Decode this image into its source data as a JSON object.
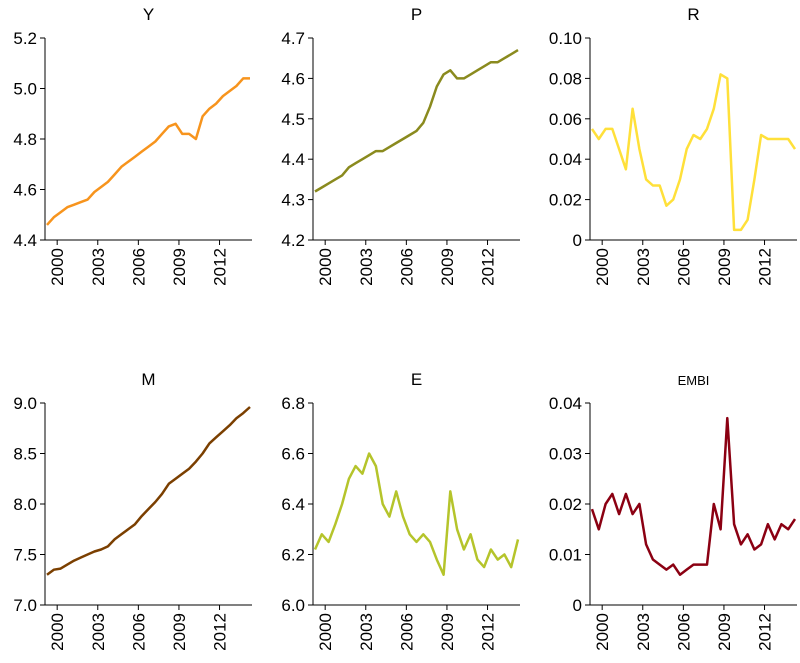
{
  "chart_data": [
    {
      "type": "line",
      "title": "Y",
      "color": "#f7941d",
      "x": [
        1999.25,
        1999.75,
        2000.25,
        2000.75,
        2001.25,
        2001.75,
        2002.25,
        2002.75,
        2003.25,
        2003.75,
        2004.25,
        2004.75,
        2005.25,
        2005.75,
        2006.25,
        2006.75,
        2007.25,
        2007.75,
        2008.25,
        2008.75,
        2009.25,
        2009.75,
        2010.25,
        2010.75,
        2011.25,
        2011.75,
        2012.25,
        2012.75,
        2013.25,
        2013.75,
        2014.25
      ],
      "values": [
        4.46,
        4.49,
        4.51,
        4.53,
        4.54,
        4.55,
        4.56,
        4.59,
        4.61,
        4.63,
        4.66,
        4.69,
        4.71,
        4.73,
        4.75,
        4.77,
        4.79,
        4.82,
        4.85,
        4.86,
        4.82,
        4.82,
        4.8,
        4.89,
        4.92,
        4.94,
        4.97,
        4.99,
        5.01,
        5.04,
        5.04
      ],
      "xlim": [
        1999.1,
        2014.4
      ],
      "xticks": [
        2000,
        2003,
        2006,
        2009,
        2012
      ],
      "ylim": [
        4.4,
        5.2
      ],
      "yticks": [
        4.4,
        4.6,
        4.8,
        {
          "value": 5,
          "label": "5.0"
        },
        5.2
      ]
    },
    {
      "type": "line",
      "title": "P",
      "color": "#8a8a1e",
      "x": [
        1999.25,
        1999.75,
        2000.25,
        2000.75,
        2001.25,
        2001.75,
        2002.25,
        2002.75,
        2003.25,
        2003.75,
        2004.25,
        2004.75,
        2005.25,
        2005.75,
        2006.25,
        2006.75,
        2007.25,
        2007.75,
        2008.25,
        2008.75,
        2009.25,
        2009.75,
        2010.25,
        2010.75,
        2011.25,
        2011.75,
        2012.25,
        2012.75,
        2013.25,
        2013.75,
        2014.25
      ],
      "values": [
        4.32,
        4.33,
        4.34,
        4.35,
        4.36,
        4.38,
        4.39,
        4.4,
        4.41,
        4.42,
        4.42,
        4.43,
        4.44,
        4.45,
        4.46,
        4.47,
        4.49,
        4.53,
        4.58,
        4.61,
        4.62,
        4.6,
        4.6,
        4.61,
        4.62,
        4.63,
        4.64,
        4.64,
        4.65,
        4.66,
        4.67
      ],
      "xlim": [
        1999.1,
        2014.4
      ],
      "xticks": [
        2000,
        2003,
        2006,
        2009,
        2012
      ],
      "ylim": [
        4.2,
        4.7
      ],
      "yticks": [
        4.2,
        4.3,
        4.4,
        4.5,
        4.6,
        4.7
      ]
    },
    {
      "type": "line",
      "title": "R",
      "color": "#ffe03a",
      "x": [
        1999.25,
        1999.75,
        2000.25,
        2000.75,
        2001.25,
        2001.75,
        2002.25,
        2002.75,
        2003.25,
        2003.75,
        2004.25,
        2004.75,
        2005.25,
        2005.75,
        2006.25,
        2006.75,
        2007.25,
        2007.75,
        2008.25,
        2008.75,
        2009.25,
        2009.75,
        2010.25,
        2010.75,
        2011.25,
        2011.75,
        2012.25,
        2012.75,
        2013.25,
        2013.75,
        2014.25
      ],
      "values": [
        0.055,
        0.05,
        0.055,
        0.055,
        0.045,
        0.035,
        0.065,
        0.045,
        0.03,
        0.027,
        0.027,
        0.017,
        0.02,
        0.03,
        0.045,
        0.052,
        0.05,
        0.055,
        0.065,
        0.082,
        0.08,
        0.005,
        0.005,
        0.01,
        0.03,
        0.052,
        0.05,
        0.05,
        0.05,
        0.05,
        0.045
      ],
      "xlim": [
        1999.1,
        2014.4
      ],
      "xticks": [
        2000,
        2003,
        2006,
        2009,
        2012
      ],
      "ylim": [
        0,
        0.1
      ],
      "yticks": [
        0,
        0.02,
        0.04,
        0.06,
        0.08,
        {
          "value": 0.1,
          "label": "0.10"
        }
      ]
    },
    {
      "type": "line",
      "title": "M",
      "color": "#7b3f00",
      "x": [
        1999.25,
        1999.75,
        2000.25,
        2000.75,
        2001.25,
        2001.75,
        2002.25,
        2002.75,
        2003.25,
        2003.75,
        2004.25,
        2004.75,
        2005.25,
        2005.75,
        2006.25,
        2006.75,
        2007.25,
        2007.75,
        2008.25,
        2008.75,
        2009.25,
        2009.75,
        2010.25,
        2010.75,
        2011.25,
        2011.75,
        2012.25,
        2012.75,
        2013.25,
        2013.75,
        2014.25
      ],
      "values": [
        7.3,
        7.35,
        7.36,
        7.4,
        7.44,
        7.47,
        7.5,
        7.53,
        7.55,
        7.58,
        7.65,
        7.7,
        7.75,
        7.8,
        7.88,
        7.95,
        8.02,
        8.1,
        8.2,
        8.25,
        8.3,
        8.35,
        8.42,
        8.5,
        8.6,
        8.66,
        8.72,
        8.78,
        8.85,
        8.9,
        8.96
      ],
      "xlim": [
        1999.1,
        2014.4
      ],
      "xticks": [
        2000,
        2003,
        2006,
        2009,
        2012
      ],
      "ylim": [
        7,
        9
      ],
      "yticks": [
        {
          "value": 7,
          "label": "7.0"
        },
        7.5,
        {
          "value": 8,
          "label": "8.0"
        },
        8.5,
        {
          "value": 9,
          "label": "9.0"
        }
      ]
    },
    {
      "type": "line",
      "title": "E",
      "color": "#b5c42b",
      "x": [
        1999.25,
        1999.75,
        2000.25,
        2000.75,
        2001.25,
        2001.75,
        2002.25,
        2002.75,
        2003.25,
        2003.75,
        2004.25,
        2004.75,
        2005.25,
        2005.75,
        2006.25,
        2006.75,
        2007.25,
        2007.75,
        2008.25,
        2008.75,
        2009.25,
        2009.75,
        2010.25,
        2010.75,
        2011.25,
        2011.75,
        2012.25,
        2012.75,
        2013.25,
        2013.75,
        2014.25
      ],
      "values": [
        6.22,
        6.28,
        6.25,
        6.32,
        6.4,
        6.5,
        6.55,
        6.52,
        6.6,
        6.55,
        6.4,
        6.35,
        6.45,
        6.35,
        6.28,
        6.25,
        6.28,
        6.25,
        6.18,
        6.12,
        6.45,
        6.3,
        6.22,
        6.28,
        6.18,
        6.15,
        6.22,
        6.18,
        6.2,
        6.15,
        6.26
      ],
      "xlim": [
        1999.1,
        2014.4
      ],
      "xticks": [
        2000,
        2003,
        2006,
        2009,
        2012
      ],
      "ylim": [
        6,
        6.8
      ],
      "yticks": [
        {
          "value": 6,
          "label": "6.0"
        },
        6.2,
        6.4,
        6.6,
        6.8
      ]
    },
    {
      "type": "line",
      "title": "EMBI",
      "color": "#8b0012",
      "x": [
        1999.25,
        1999.75,
        2000.25,
        2000.75,
        2001.25,
        2001.75,
        2002.25,
        2002.75,
        2003.25,
        2003.75,
        2004.25,
        2004.75,
        2005.25,
        2005.75,
        2006.25,
        2006.75,
        2007.25,
        2007.75,
        2008.25,
        2008.75,
        2009.25,
        2009.75,
        2010.25,
        2010.75,
        2011.25,
        2011.75,
        2012.25,
        2012.75,
        2013.25,
        2013.75,
        2014.25
      ],
      "values": [
        0.019,
        0.015,
        0.02,
        0.022,
        0.018,
        0.022,
        0.018,
        0.02,
        0.012,
        0.009,
        0.008,
        0.007,
        0.008,
        0.006,
        0.007,
        0.008,
        0.008,
        0.008,
        0.02,
        0.015,
        0.037,
        0.016,
        0.012,
        0.014,
        0.011,
        0.012,
        0.016,
        0.013,
        0.016,
        0.015,
        0.017
      ],
      "xlim": [
        1999.1,
        2014.4
      ],
      "xticks": [
        2000,
        2003,
        2006,
        2009,
        2012
      ],
      "ylim": [
        0,
        0.04
      ],
      "yticks": [
        0,
        0.01,
        0.02,
        0.03,
        0.04
      ]
    }
  ]
}
